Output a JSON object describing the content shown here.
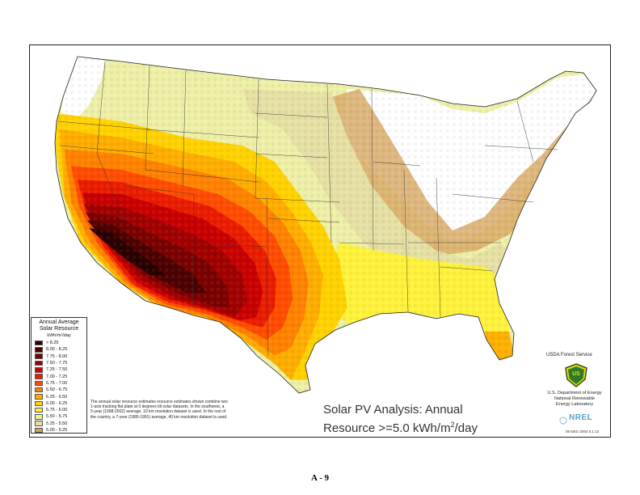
{
  "map": {
    "title_line1": "Solar PV Analysis:  Annual",
    "title_line2_prefix": "Resource >=5.0 kWh/m",
    "title_line2_sup": "2",
    "title_line2_suffix": "/day",
    "legend": {
      "title_line1": "Annual Average",
      "title_line2": "Solar Resource",
      "unit": "kWh/m²/day",
      "classes": [
        {
          "label": "> 8.25",
          "color": "#2a0000"
        },
        {
          "label": "8.00 - 8.25",
          "color": "#4d0000"
        },
        {
          "label": "7.75 - 8.00",
          "color": "#7a0000"
        },
        {
          "label": "7.50 - 7.75",
          "color": "#a00000"
        },
        {
          "label": "7.25 - 7.50",
          "color": "#c80000"
        },
        {
          "label": "7.00 - 7.25",
          "color": "#ea1a00"
        },
        {
          "label": "6.75 - 7.00",
          "color": "#ff4a00"
        },
        {
          "label": "6.50 - 6.75",
          "color": "#ff8000"
        },
        {
          "label": "6.25 - 6.50",
          "color": "#ffad00"
        },
        {
          "label": "6.00 - 6.25",
          "color": "#ffd200"
        },
        {
          "label": "5.75 - 6.00",
          "color": "#ffef3c"
        },
        {
          "label": "5.50 - 5.75",
          "color": "#eff08a"
        },
        {
          "label": "5.25 - 5.50",
          "color": "#e3dfa0"
        },
        {
          "label": "5.00 - 5.25",
          "color": "#d4a060"
        }
      ]
    },
    "note": "The annual solar resource estimates resource estimates shown combine two 1-axis tracking flat plate at 0 degrees tilt solar datasets.  In the southwest, a 5-year (1998-2002) average, 10 km resolution dataset is used.  In the rest of the country, a 7-year (1985-1991) average, 40 km resolution dataset is used.",
    "usfs_label": "USDA Forest Service",
    "usfs_badge_text": "US",
    "doe_line1": "U.S. Department of Energy",
    "doe_line2": "National Renewable",
    "doe_line3": "Energy Laboratory",
    "nrel_logo_text": "NREL",
    "stamp": "06-DEC-2004 5.1.12"
  },
  "page_number": "A - 9"
}
